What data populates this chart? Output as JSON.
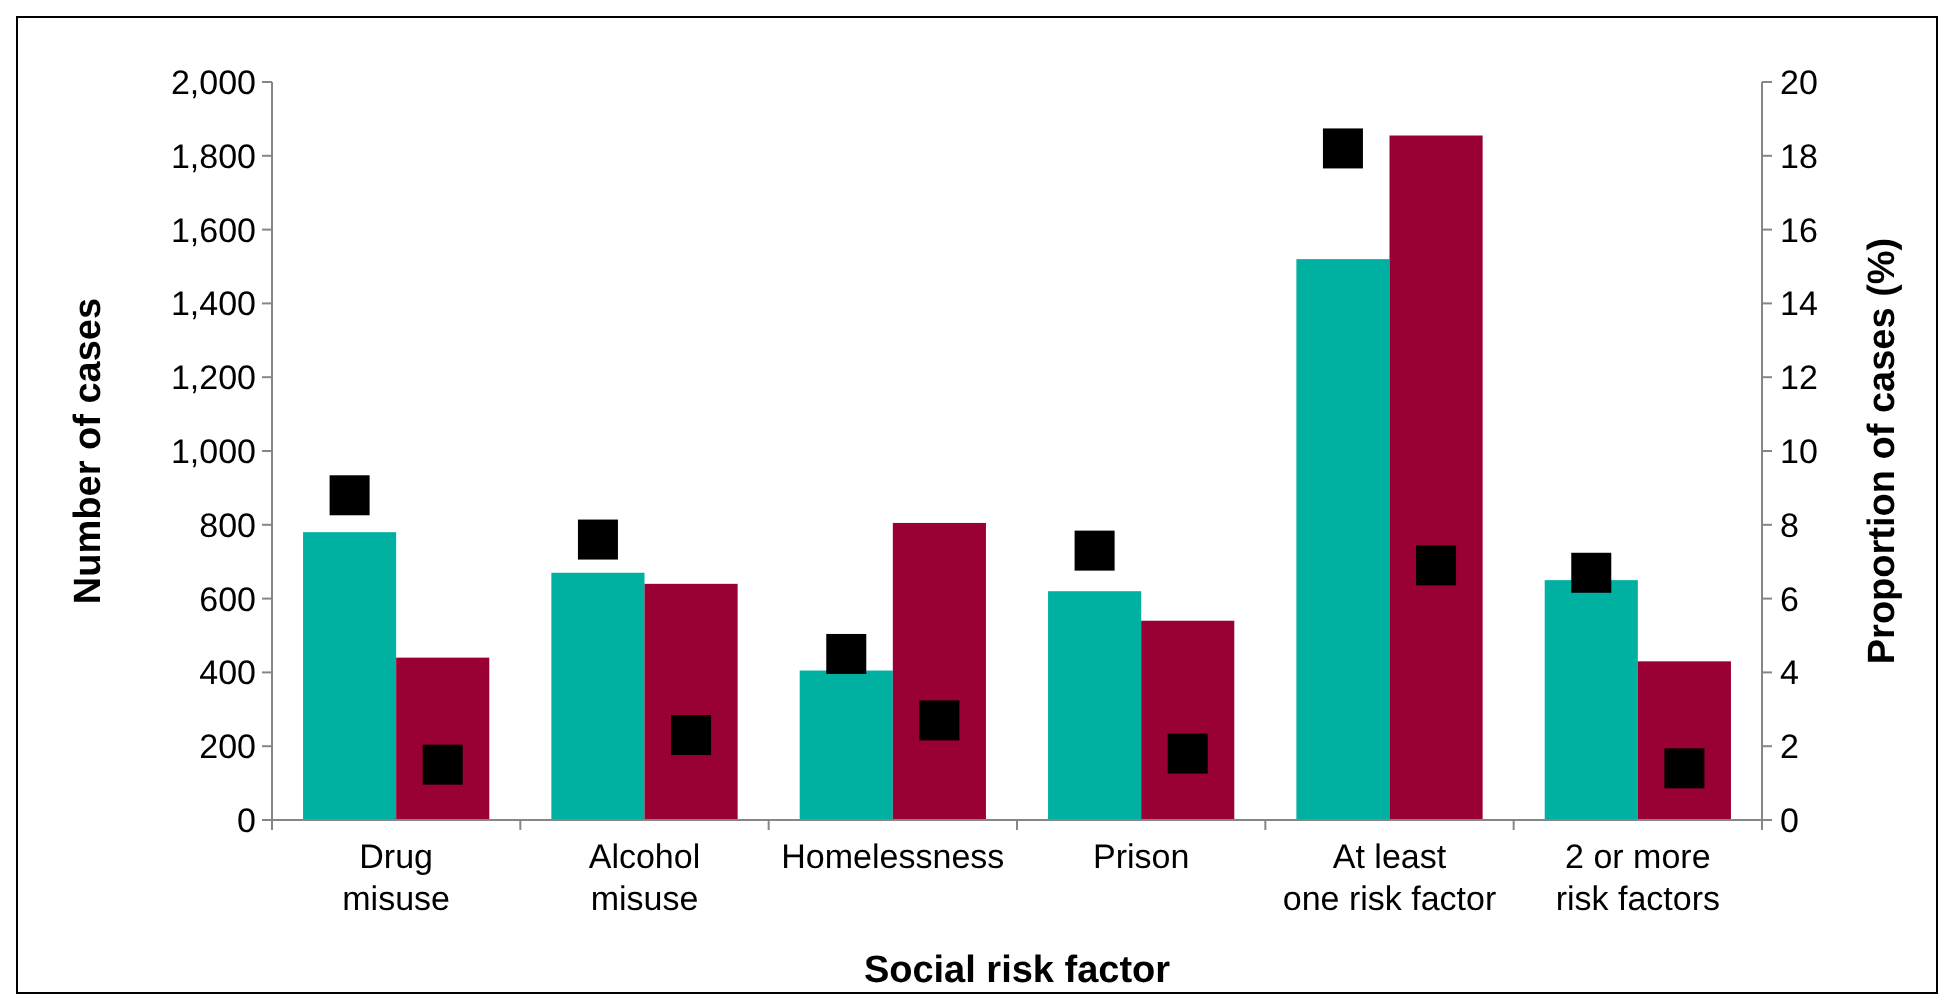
{
  "chart_data": {
    "type": "bar",
    "xlabel": "Social risk factor",
    "ylabel": "Number of cases",
    "y2label": "Proportion of cases (%)",
    "categories": [
      "Drug\nmisuse",
      "Alcohol\nmisuse",
      "Homelessness",
      "Prison",
      "At least\none risk factor",
      "2 or more\nrisk factors"
    ],
    "series": [
      {
        "color": "#00b0a0",
        "values": [
          780,
          670,
          405,
          620,
          1520,
          650
        ]
      },
      {
        "color": "#990033",
        "values": [
          440,
          640,
          805,
          540,
          1855,
          430
        ]
      },
      {
        "type": "scatter",
        "axis": "y2",
        "color": "#000000",
        "marker": "square",
        "values": [
          8.8,
          7.6,
          4.5,
          7.3,
          18.2,
          6.7
        ]
      },
      {
        "type": "scatter",
        "axis": "y2",
        "color": "#000000",
        "marker": "square",
        "values": [
          1.5,
          2.3,
          2.7,
          1.8,
          6.9,
          1.4
        ]
      }
    ],
    "ylim": [
      0,
      2000
    ],
    "yticks": [
      0,
      200,
      400,
      600,
      800,
      {
        "value": 1000,
        "label": "1,000"
      },
      {
        "value": 1200,
        "label": "1,200"
      },
      {
        "value": 1400,
        "label": "1,400"
      },
      {
        "value": 1600,
        "label": "1,600"
      },
      {
        "value": 1800,
        "label": "1,800"
      },
      {
        "value": 2000,
        "label": "2,000"
      }
    ],
    "y2lim": [
      0,
      20
    ],
    "y2ticks": [
      0,
      2,
      4,
      6,
      8,
      10,
      12,
      14,
      16,
      18,
      20
    ],
    "grid": false
  }
}
